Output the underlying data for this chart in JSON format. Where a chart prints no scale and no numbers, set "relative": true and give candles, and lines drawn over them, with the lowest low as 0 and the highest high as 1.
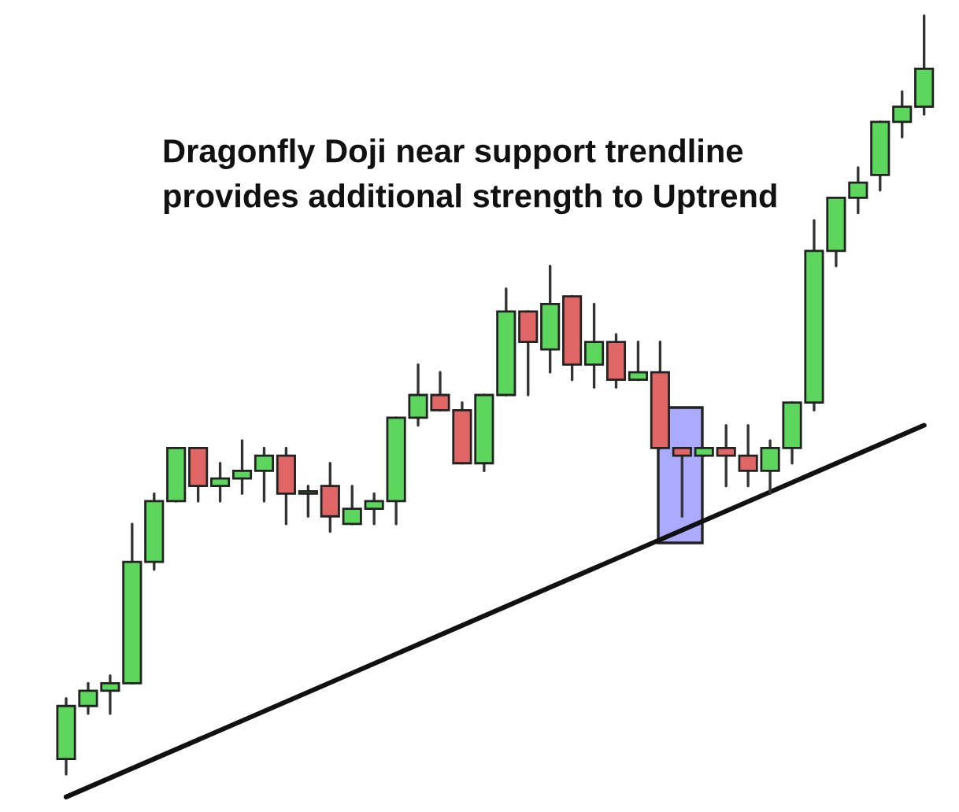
{
  "chart_data": {
    "type": "candlestick",
    "relative": true,
    "categories": [
      null,
      null,
      null,
      null,
      null,
      null,
      null,
      null,
      null,
      null,
      null,
      null,
      null,
      null,
      null,
      null,
      null,
      null,
      null,
      null,
      null,
      null,
      null,
      null,
      null,
      null,
      null,
      null,
      null,
      null,
      null,
      null,
      null,
      null,
      null,
      null,
      null,
      null,
      null,
      null
    ],
    "ohlc": [
      [
        0.02,
        0.1,
        0,
        0.09
      ],
      [
        0.09,
        0.12,
        0.08,
        0.11
      ],
      [
        0.11,
        0.13,
        0.08,
        0.12
      ],
      [
        0.12,
        0.33,
        0.12,
        0.28
      ],
      [
        0.28,
        0.37,
        0.27,
        0.36
      ],
      [
        0.36,
        0.43,
        0.36,
        0.43
      ],
      [
        0.43,
        0.43,
        0.36,
        0.38
      ],
      [
        0.38,
        0.41,
        0.36,
        0.39
      ],
      [
        0.39,
        0.44,
        0.37,
        0.4
      ],
      [
        0.4,
        0.43,
        0.36,
        0.42
      ],
      [
        0.42,
        0.43,
        0.33,
        0.37
      ],
      [
        0.37,
        0.38,
        0.34,
        0.37
      ],
      [
        0.38,
        0.41,
        0.32,
        0.34
      ],
      [
        0.33,
        0.38,
        0.33,
        0.35
      ],
      [
        0.35,
        0.37,
        0.33,
        0.36
      ],
      [
        0.36,
        0.47,
        0.33,
        0.47
      ],
      [
        0.47,
        0.54,
        0.46,
        0.5
      ],
      [
        0.5,
        0.53,
        0.48,
        0.48
      ],
      [
        0.48,
        0.49,
        0.41,
        0.41
      ],
      [
        0.41,
        0.5,
        0.4,
        0.5
      ],
      [
        0.5,
        0.64,
        0.5,
        0.61
      ],
      [
        0.61,
        0.61,
        0.5,
        0.57
      ],
      [
        0.56,
        0.67,
        0.53,
        0.62
      ],
      [
        0.63,
        0.63,
        0.52,
        0.54
      ],
      [
        0.54,
        0.62,
        0.51,
        0.57
      ],
      [
        0.57,
        0.58,
        0.51,
        0.52
      ],
      [
        0.52,
        0.57,
        0.52,
        0.53
      ],
      [
        0.53,
        0.57,
        0.43,
        0.43
      ],
      [
        0.43,
        0.43,
        0.34,
        0.42
      ],
      [
        0.42,
        0.43,
        0.42,
        0.43
      ],
      [
        0.43,
        0.46,
        0.38,
        0.42
      ],
      [
        0.42,
        0.46,
        0.38,
        0.4
      ],
      [
        0.4,
        0.44,
        0.37,
        0.43
      ],
      [
        0.43,
        0.49,
        0.41,
        0.49
      ],
      [
        0.49,
        0.73,
        0.48,
        0.69
      ],
      [
        0.69,
        0.76,
        0.67,
        0.76
      ],
      [
        0.76,
        0.8,
        0.74,
        0.78
      ],
      [
        0.79,
        0.86,
        0.77,
        0.86
      ],
      [
        0.86,
        0.9,
        0.84,
        0.88
      ],
      [
        0.88,
        1.0,
        0.87,
        0.93
      ]
    ],
    "colors": [
      "#5cd65c",
      "#5cd65c",
      "#5cd65c",
      "#5cd65c",
      "#5cd65c",
      "#5cd65c",
      "#e06666",
      "#5cd65c",
      "#5cd65c",
      "#5cd65c",
      "#e06666",
      "#5cd65c",
      "#e06666",
      "#5cd65c",
      "#5cd65c",
      "#5cd65c",
      "#5cd65c",
      "#e06666",
      "#e06666",
      "#5cd65c",
      "#5cd65c",
      "#e06666",
      "#5cd65c",
      "#e06666",
      "#5cd65c",
      "#e06666",
      "#5cd65c",
      "#e06666",
      "#e06666",
      "#5cd65c",
      "#e06666",
      "#e06666",
      "#5cd65c",
      "#5cd65c",
      "#5cd65c",
      "#5cd65c",
      "#5cd65c",
      "#5cd65c",
      "#5cd65c",
      "#5cd65c"
    ],
    "series": [
      {
        "type": "line",
        "values": [
          -0.03,
          null,
          null,
          null,
          null,
          null,
          null,
          null,
          null,
          null,
          null,
          null,
          null,
          null,
          null,
          null,
          null,
          null,
          null,
          null,
          null,
          null,
          null,
          null,
          null,
          null,
          null,
          null,
          null,
          null,
          null,
          null,
          null,
          null,
          null,
          null,
          null,
          null,
          null,
          0.46
        ],
        "color": "#111111"
      }
    ],
    "annotations": [
      "Dragonfly Doji near support trendline\nprovides additional strength to Uptrend"
    ]
  }
}
